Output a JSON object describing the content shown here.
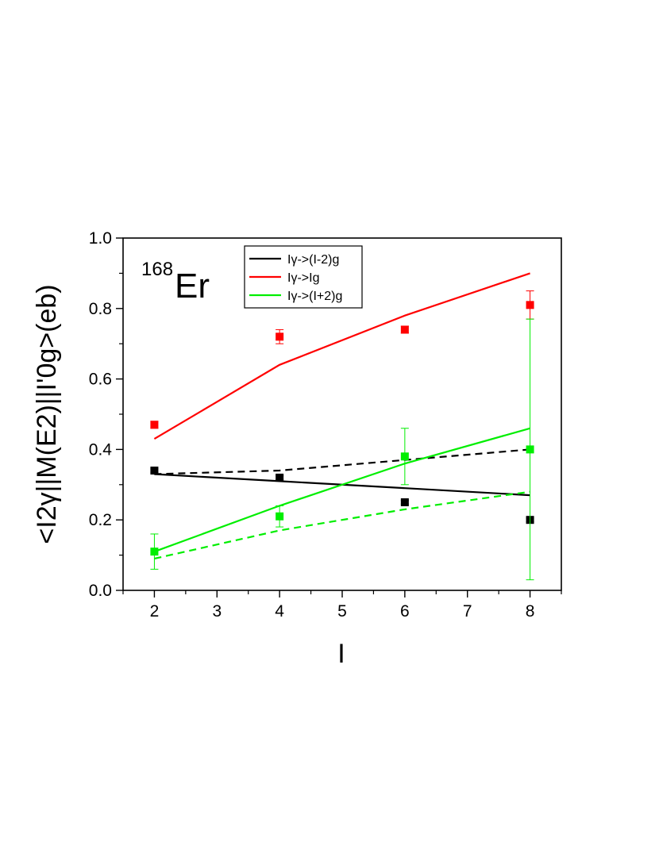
{
  "chart_data": {
    "type": "line",
    "title": "",
    "xlabel": "I",
    "ylabel": "<I2γ||M(E2)||I'0g>(eb)",
    "xlim": [
      1.5,
      8.5
    ],
    "ylim": [
      0.0,
      1.0
    ],
    "xticks": [
      2,
      3,
      4,
      5,
      6,
      7,
      8
    ],
    "xtick_labels": [
      "2",
      "3",
      "4",
      "5",
      "6",
      "7",
      "8"
    ],
    "yticks": [
      0.0,
      0.2,
      0.4,
      0.6,
      0.8,
      1.0
    ],
    "ytick_labels": [
      "0.0",
      "0.2",
      "0.4",
      "0.6",
      "0.8",
      "1.0"
    ],
    "grid": false,
    "legend_position": "top-center",
    "annotation": {
      "superscript": "168",
      "text": "Er"
    },
    "series": [
      {
        "name": "Iγ->(I-2)g",
        "color": "#000000",
        "line_x": [
          2,
          4,
          6,
          8
        ],
        "line_y": [
          0.33,
          0.31,
          0.29,
          0.27
        ],
        "dashed_x": [
          2,
          4,
          6,
          8
        ],
        "dashed_y": [
          0.33,
          0.34,
          0.37,
          0.4
        ],
        "points_x": [
          2,
          4,
          6,
          8
        ],
        "points_y": [
          0.34,
          0.32,
          0.25,
          0.2
        ],
        "errors": [
          0.005,
          0.005,
          0.005,
          0.005
        ]
      },
      {
        "name": "Iγ->Ig",
        "color": "#ff0000",
        "line_x": [
          2,
          4,
          6,
          8
        ],
        "line_y": [
          0.43,
          0.64,
          0.78,
          0.9
        ],
        "dashed_x": [],
        "dashed_y": [],
        "points_x": [
          2,
          4,
          6,
          8
        ],
        "points_y": [
          0.47,
          0.72,
          0.74,
          0.81
        ],
        "errors": [
          0.01,
          0.02,
          0.01,
          0.04
        ]
      },
      {
        "name": "Iγ->(I+2)g",
        "color": "#00ee00",
        "line_x": [
          2,
          4,
          6,
          8
        ],
        "line_y": [
          0.11,
          0.24,
          0.36,
          0.46
        ],
        "dashed_x": [
          2,
          4,
          6,
          8
        ],
        "dashed_y": [
          0.09,
          0.17,
          0.23,
          0.28
        ],
        "points_x": [
          2,
          4,
          6,
          8
        ],
        "points_y": [
          0.11,
          0.21,
          0.38,
          0.4
        ],
        "errors": [
          0.05,
          0.03,
          0.08,
          0.37
        ]
      }
    ]
  }
}
